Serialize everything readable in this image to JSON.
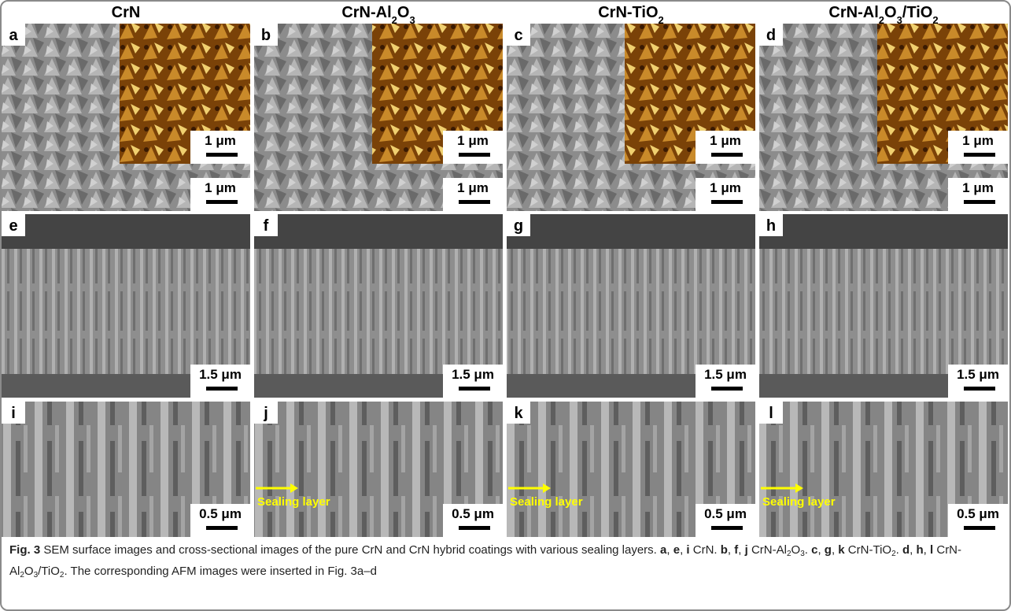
{
  "columns": [
    {
      "header": [
        {
          "text": "CrN",
          "style": "bold"
        }
      ]
    },
    {
      "header": [
        {
          "text": "CrN-Al",
          "style": "bold"
        },
        {
          "text": "2",
          "style": "sub"
        },
        {
          "text": "O",
          "style": "bold"
        },
        {
          "text": "3",
          "style": "sub"
        }
      ]
    },
    {
      "header": [
        {
          "text": "CrN-TiO",
          "style": "bold"
        },
        {
          "text": "2",
          "style": "sub"
        }
      ]
    },
    {
      "header": [
        {
          "text": "CrN-Al",
          "style": "bold"
        },
        {
          "text": "2",
          "style": "sub"
        },
        {
          "text": "O",
          "style": "bold"
        },
        {
          "text": "3",
          "style": "sub"
        },
        {
          "text": "/TiO",
          "style": "bold"
        },
        {
          "text": "2",
          "style": "sub"
        }
      ]
    }
  ],
  "panels": [
    {
      "label": "a",
      "scale": "1 μm",
      "inset_scale": "1 μm"
    },
    {
      "label": "b",
      "scale": "1 μm",
      "inset_scale": "1 μm"
    },
    {
      "label": "c",
      "scale": "1 μm",
      "inset_scale": "1 μm"
    },
    {
      "label": "d",
      "scale": "1 μm",
      "inset_scale": "1 μm"
    },
    {
      "label": "e",
      "scale": "1.5 μm"
    },
    {
      "label": "f",
      "scale": "1.5 μm"
    },
    {
      "label": "g",
      "scale": "1.5 μm"
    },
    {
      "label": "h",
      "scale": "1.5 μm"
    },
    {
      "label": "i",
      "scale": "0.5 μm"
    },
    {
      "label": "j",
      "scale": "0.5 μm",
      "annotation": "Sealing layer"
    },
    {
      "label": "k",
      "scale": "0.5 μm",
      "annotation": "Sealing layer"
    },
    {
      "label": "l",
      "scale": "0.5 μm",
      "annotation": "Sealing layer"
    }
  ],
  "caption": [
    {
      "text": "Fig. 3",
      "style": "bold"
    },
    {
      "text": " SEM surface images and cross-sectional images of the pure CrN and CrN hybrid coatings with various sealing layers. ",
      "style": "normal"
    },
    {
      "text": "a",
      "style": "bold"
    },
    {
      "text": ", ",
      "style": "normal"
    },
    {
      "text": "e",
      "style": "bold"
    },
    {
      "text": ", ",
      "style": "normal"
    },
    {
      "text": "i",
      "style": "bold"
    },
    {
      "text": " CrN. ",
      "style": "normal"
    },
    {
      "text": "b",
      "style": "bold"
    },
    {
      "text": ", ",
      "style": "normal"
    },
    {
      "text": "f",
      "style": "bold"
    },
    {
      "text": ", ",
      "style": "normal"
    },
    {
      "text": "j",
      "style": "bold"
    },
    {
      "text": " CrN-Al",
      "style": "normal"
    },
    {
      "text": "2",
      "style": "sub"
    },
    {
      "text": "O",
      "style": "normal"
    },
    {
      "text": "3",
      "style": "sub"
    },
    {
      "text": ". ",
      "style": "normal"
    },
    {
      "text": "c",
      "style": "bold"
    },
    {
      "text": ", ",
      "style": "normal"
    },
    {
      "text": "g",
      "style": "bold"
    },
    {
      "text": ", ",
      "style": "normal"
    },
    {
      "text": "k",
      "style": "bold"
    },
    {
      "text": " CrN-TiO",
      "style": "normal"
    },
    {
      "text": "2",
      "style": "sub"
    },
    {
      "text": ". ",
      "style": "normal"
    },
    {
      "text": "d",
      "style": "bold"
    },
    {
      "text": ", ",
      "style": "normal"
    },
    {
      "text": "h",
      "style": "bold"
    },
    {
      "text": ", ",
      "style": "normal"
    },
    {
      "text": "l",
      "style": "bold"
    },
    {
      "text": " CrN-Al",
      "style": "normal"
    },
    {
      "text": "2",
      "style": "sub"
    },
    {
      "text": "O",
      "style": "normal"
    },
    {
      "text": "3",
      "style": "sub"
    },
    {
      "text": "/TiO",
      "style": "normal"
    },
    {
      "text": "2",
      "style": "sub"
    },
    {
      "text": ". The corresponding AFM images were inserted in Fig. 3a–d",
      "style": "normal"
    }
  ]
}
